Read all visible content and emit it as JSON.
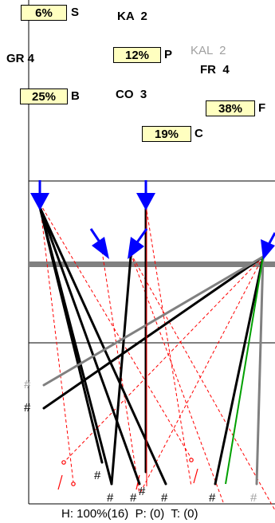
{
  "blocks": [
    {
      "pct": "6%",
      "letter": "S"
    },
    {
      "pct": "12%",
      "letter": "P"
    },
    {
      "pct": "25%",
      "letter": "B"
    },
    {
      "pct": "38%",
      "letter": "F"
    },
    {
      "pct": "19%",
      "letter": "C"
    }
  ],
  "parties": [
    {
      "name": "KA",
      "count": "2"
    },
    {
      "name": "GR",
      "count": "4"
    },
    {
      "name": "KAL",
      "count": "2"
    },
    {
      "name": "FR",
      "count": "4"
    },
    {
      "name": "CO",
      "count": "3"
    }
  ],
  "hash_mark": "#",
  "status": {
    "h_label": "H:",
    "h_value": "100%(16)",
    "p_label": "P:",
    "p_value": "(0)",
    "t_label": "T:",
    "t_value": "(0)"
  },
  "colors": {
    "box_fill": "#ffffc0",
    "arrow": "#0000ff",
    "cue_line": "#ff0000",
    "thick_line": "#000000",
    "gray_line": "#808080",
    "green_line": "#00a000",
    "dim_text": "#a0a0a0"
  }
}
